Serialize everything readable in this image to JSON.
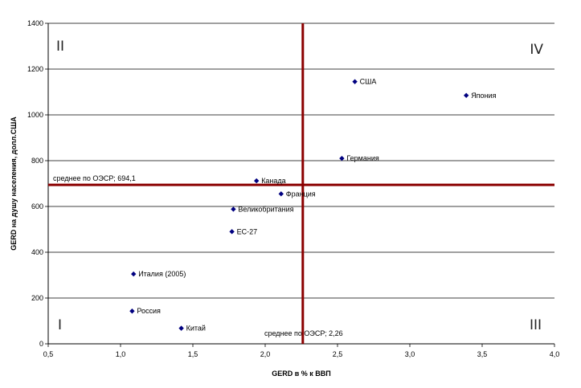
{
  "chart_data": {
    "type": "scatter",
    "title": "",
    "xlabel": "GERD в % к ВВП",
    "ylabel": "GERD на душу населения, долл.США",
    "xlim": [
      0.5,
      4.0
    ],
    "ylim": [
      0,
      1400
    ],
    "x_ticks": [
      "0,5",
      "1,0",
      "1,5",
      "2,0",
      "2,5",
      "3,0",
      "3,5",
      "4,0"
    ],
    "y_ticks": [
      "0",
      "200",
      "400",
      "600",
      "800",
      "1000",
      "1200",
      "1400"
    ],
    "grid": "horizontal",
    "points": [
      {
        "x": 2.62,
        "y": 1145,
        "label": "США"
      },
      {
        "x": 3.39,
        "y": 1085,
        "label": "Япония"
      },
      {
        "x": 2.53,
        "y": 810,
        "label": "Германия"
      },
      {
        "x": 1.94,
        "y": 712,
        "label": "Канада"
      },
      {
        "x": 2.11,
        "y": 655,
        "label": "Франция"
      },
      {
        "x": 1.78,
        "y": 588,
        "label": "Великобритания"
      },
      {
        "x": 1.77,
        "y": 490,
        "label": "ЕС-27"
      },
      {
        "x": 1.09,
        "y": 305,
        "label": "Италия (2005)"
      },
      {
        "x": 1.08,
        "y": 143,
        "label": "Россия"
      },
      {
        "x": 1.42,
        "y": 68,
        "label": "Китай"
      }
    ],
    "reference_lines": [
      {
        "axis": "y",
        "value": 694.1,
        "label": "среднее по ОЭСР; 694,1"
      },
      {
        "axis": "x",
        "value": 2.26,
        "label": "среднее по ОЭСР; 2,26"
      }
    ],
    "quadrants": [
      {
        "label": "II",
        "position": "top-left"
      },
      {
        "label": "IV",
        "position": "top-right"
      },
      {
        "label": "I",
        "position": "bottom-left"
      },
      {
        "label": "III",
        "position": "bottom-right"
      }
    ],
    "colors": {
      "marker": "#000080",
      "reference": "#8b0000",
      "grid": "#000000"
    }
  }
}
